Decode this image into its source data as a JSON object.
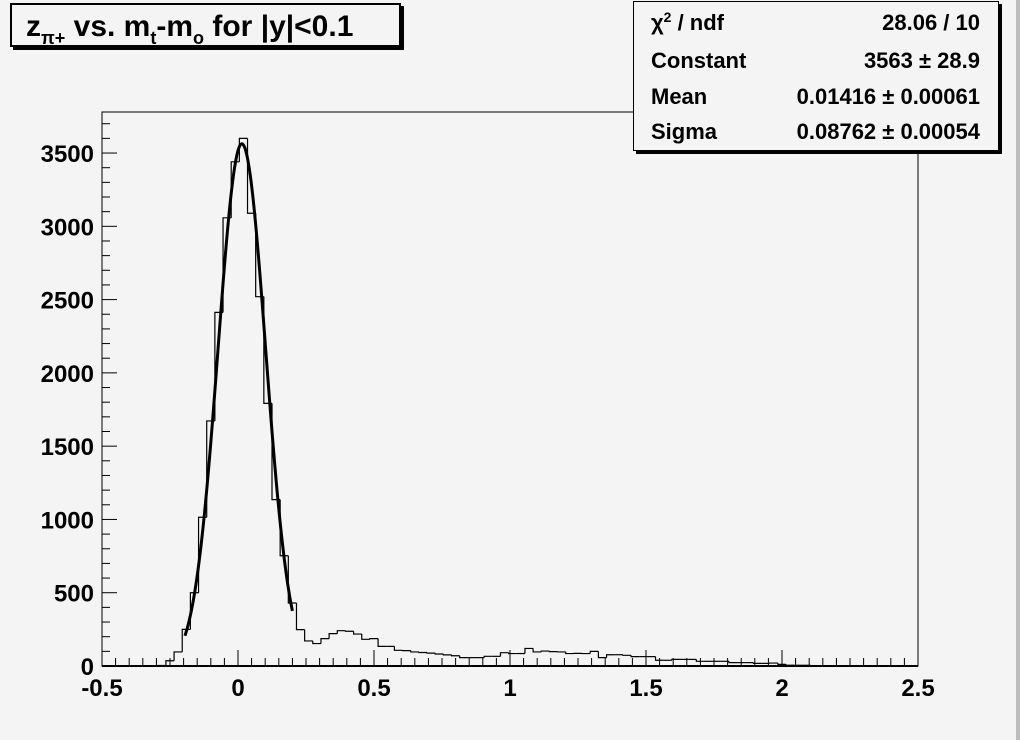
{
  "colors": {
    "background": "#f4f4f4",
    "line": "#000000"
  },
  "title_parts": {
    "z": "z",
    "z_sub": "π+",
    "vs": " vs. m",
    "t_sub": "t",
    "dash": "-m",
    "o_sub": "o",
    "rest": " for |y|<0.1"
  },
  "stats": {
    "chi2_label_main": "χ",
    "chi2_label_sup": "2",
    "chi2_label_rest": " / ndf",
    "chi2_value": "28.06 / 10",
    "constant_label": "Constant",
    "constant_value": "3563 ± 28.9",
    "mean_label": "Mean",
    "mean_value": "0.01416 ± 0.00061",
    "sigma_label": "Sigma",
    "sigma_value": "0.08762 ± 0.00054"
  },
  "chart_data": {
    "type": "histogram",
    "title": "z_{π+} vs. m_t-m_o for |y|<0.1",
    "xlabel": "",
    "ylabel": "",
    "xlim": [
      -0.5,
      2.5
    ],
    "ylim": [
      0,
      3780
    ],
    "x_ticks": [
      "-0.5",
      "0",
      "0.5",
      "1",
      "1.5",
      "2",
      "2.5"
    ],
    "y_ticks": [
      "0",
      "500",
      "1000",
      "1500",
      "2000",
      "2500",
      "3000",
      "3500"
    ],
    "grid": false,
    "bin_start": -0.295,
    "bin_width": 0.03,
    "values": [
      4,
      36,
      96,
      250,
      500,
      1015,
      1672,
      2413,
      3058,
      3440,
      3600,
      3089,
      2520,
      1792,
      1135,
      752,
      430,
      248,
      171,
      153,
      187,
      221,
      241,
      237,
      218,
      182,
      187,
      134,
      134,
      107,
      105,
      96,
      92,
      88,
      82,
      76,
      70,
      57,
      57,
      57,
      66,
      66,
      91,
      85,
      85,
      120,
      96,
      102,
      98,
      96,
      85,
      86,
      85,
      100,
      57,
      77,
      77,
      73,
      64,
      64,
      64,
      39,
      39,
      45,
      45,
      45,
      32,
      32,
      32,
      32,
      23,
      23,
      23,
      18,
      18,
      20,
      11,
      5,
      5,
      5
    ],
    "fit": {
      "function": "gaus",
      "constant": 3563,
      "mean": 0.01416,
      "sigma": 0.08762,
      "range": [
        -0.195,
        0.2
      ]
    },
    "legend_placement": "top-right"
  }
}
